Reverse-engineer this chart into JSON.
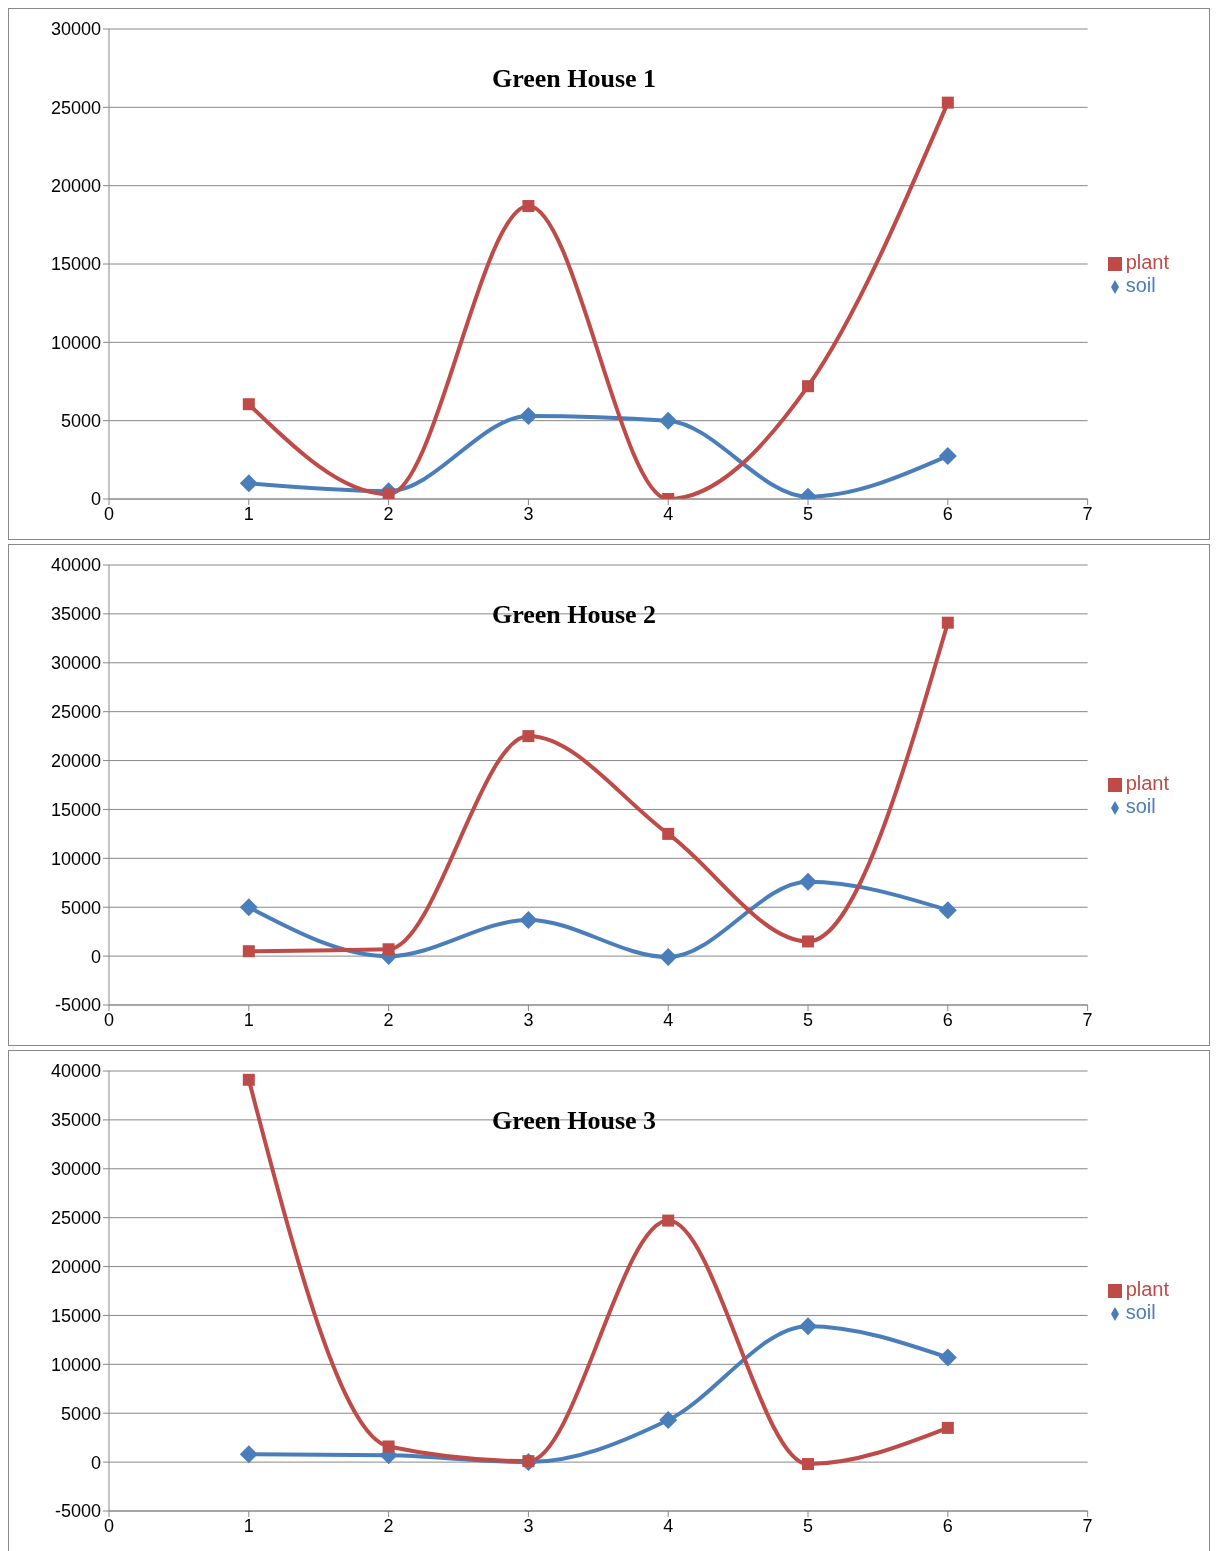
{
  "chart_data": [
    {
      "type": "line",
      "title": "Green House 1",
      "x": [
        1,
        2,
        3,
        4,
        5,
        6
      ],
      "xlim": [
        0,
        7
      ],
      "xticks": [
        0,
        1,
        2,
        3,
        4,
        5,
        6,
        7
      ],
      "ylim": [
        0,
        30000
      ],
      "yticks": [
        0,
        5000,
        10000,
        15000,
        20000,
        25000,
        30000
      ],
      "grid": "y",
      "legend": "right",
      "line_style": "solid",
      "series": [
        {
          "name": "soil",
          "color": "#4a7ebb",
          "marker": "diamond",
          "values": [
            1000,
            500,
            5300,
            5000,
            150,
            2750
          ]
        },
        {
          "name": "plant",
          "color": "#be4b48",
          "marker": "square",
          "values": [
            6050,
            300,
            18700,
            0,
            7200,
            25300
          ]
        }
      ]
    },
    {
      "type": "line",
      "title": "Green House 2",
      "x": [
        1,
        2,
        3,
        4,
        5,
        6
      ],
      "xlim": [
        0,
        7
      ],
      "xticks": [
        0,
        1,
        2,
        3,
        4,
        5,
        6,
        7
      ],
      "ylim": [
        -5000,
        40000
      ],
      "yticks": [
        -5000,
        0,
        5000,
        10000,
        15000,
        20000,
        25000,
        30000,
        35000,
        40000
      ],
      "grid": "y",
      "legend": "right",
      "line_style": "solid",
      "series": [
        {
          "name": "soil",
          "color": "#4a7ebb",
          "marker": "diamond",
          "values": [
            5000,
            0,
            3700,
            -100,
            7600,
            4700
          ]
        },
        {
          "name": "plant",
          "color": "#be4b48",
          "marker": "square",
          "values": [
            500,
            700,
            22500,
            12500,
            1500,
            34100
          ]
        }
      ]
    },
    {
      "type": "line",
      "title": "Green House 3",
      "x": [
        1,
        2,
        3,
        4,
        5,
        6
      ],
      "xlim": [
        0,
        7
      ],
      "xticks": [
        0,
        1,
        2,
        3,
        4,
        5,
        6,
        7
      ],
      "ylim": [
        -5000,
        40000
      ],
      "yticks": [
        -5000,
        0,
        5000,
        10000,
        15000,
        20000,
        25000,
        30000,
        35000,
        40000
      ],
      "grid": "y",
      "legend": "right",
      "line_style": "solid",
      "series": [
        {
          "name": "soil",
          "color": "#4a7ebb",
          "marker": "diamond",
          "values": [
            800,
            700,
            0,
            4300,
            13900,
            10700
          ]
        },
        {
          "name": "plant",
          "color": "#be4b48",
          "marker": "square",
          "values": [
            39100,
            1600,
            100,
            24700,
            -200,
            3500
          ]
        }
      ]
    }
  ]
}
